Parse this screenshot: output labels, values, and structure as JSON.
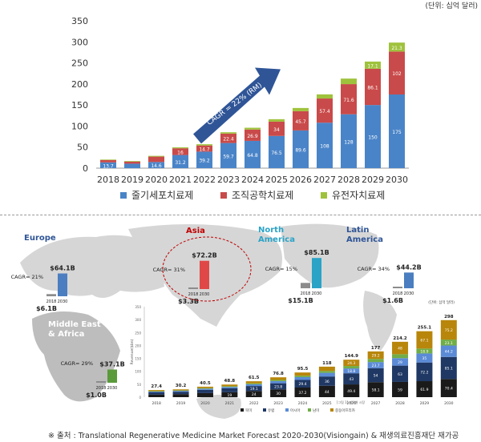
{
  "unit_note": "(단위: 십억 달러)",
  "source": "※ 출처 : Translational Regenerative Medicine Market Forecast 2020-2030(Visiongain) & 재생의료진흥재단 재가공",
  "cagr_label": "CAGR = 22% (RM)",
  "chart_data": [
    {
      "type": "bar",
      "stacked": true,
      "categories": [
        "2018",
        "2019",
        "2020",
        "2021",
        "2022",
        "2023",
        "2024",
        "2025",
        "2026",
        "2027",
        "2028",
        "2029",
        "2030"
      ],
      "series": [
        {
          "name": "줄기세포치료제",
          "color": "#4a84c8",
          "values": [
            13.7,
            10.6,
            14.6,
            31.2,
            39.2,
            59.7,
            64.8,
            76.5,
            89.6,
            108,
            128,
            150,
            175
          ]
        },
        {
          "name": "조직공학치료제",
          "color": "#c94a4a",
          "values": [
            5.6,
            5,
            12.8,
            16,
            14.7,
            22.4,
            26.9,
            34,
            45.7,
            57.4,
            71.6,
            86.1,
            102
          ]
        },
        {
          "name": "유전자치료제",
          "color": "#9fc23c",
          "values": [
            1.2,
            1.4,
            1.8,
            2.2,
            2.9,
            3.2,
            4.3,
            5.8,
            7.6,
            9.9,
            13.2,
            17.1,
            21.3
          ]
        }
      ],
      "ylim": [
        0,
        350
      ],
      "yticks": [
        0,
        50,
        100,
        150,
        200,
        250,
        300,
        350
      ],
      "grid": false,
      "legend": "bottom"
    },
    {
      "type": "bar",
      "stacked": true,
      "categories": [
        "2018",
        "2019",
        "2020",
        "2021",
        "2022",
        "2023",
        "2024",
        "2025",
        "2026",
        "2027",
        "2028",
        "2029",
        "2030"
      ],
      "totals": [
        "27.4",
        "30.2",
        "40.5",
        "48.8",
        "61.5",
        "76.8",
        "95.5",
        "118",
        "144.9",
        "177",
        "214.2",
        "255.1",
        "298"
      ],
      "series": [
        {
          "name": "북미",
          "color": "#1a1a1a",
          "values": [
            10.2,
            11.8,
            15.8,
            19,
            24,
            30,
            37.2,
            44,
            49.4,
            58.1,
            59,
            61.9,
            70.4
          ]
        },
        {
          "name": "유럽",
          "color": "#1f3864",
          "values": [
            8.5,
            9.4,
            12.6,
            15.1,
            19.1,
            23.8,
            29.4,
            36,
            43,
            54,
            63,
            72.2,
            85.1
          ]
        },
        {
          "name": "아시아",
          "color": "#5b8bd6",
          "values": [
            3,
            3.3,
            4.4,
            5.4,
            6.8,
            8.5,
            10.8,
            14.1,
            18.8,
            23.7,
            29,
            35,
            44.2
          ]
        },
        {
          "name": "남미",
          "color": "#70ad47",
          "values": [
            1.5,
            1.7,
            2.3,
            2.7,
            3.4,
            4.3,
            5.6,
            7.2,
            9.4,
            12,
            15.2,
            18.9,
            23.1
          ]
        },
        {
          "name": "중동아프리카",
          "color": "#b8860b",
          "values": [
            4.2,
            4,
            5.4,
            6.6,
            8.2,
            10.2,
            12.5,
            16.7,
            24.3,
            29.2,
            48,
            67.1,
            75.2
          ]
        }
      ],
      "ylabel": "Revenue($bn)",
      "ylim": [
        0,
        350
      ],
      "yticks": [
        0,
        50,
        100,
        150,
        200,
        250,
        300,
        350
      ],
      "unit_note": "(단위: 십억 달러)",
      "x_note": "[그림 1] 지역별 시장"
    }
  ],
  "regions": [
    {
      "name": "Europe",
      "value_2018": "$6.1B",
      "value_2030": "$64.1B",
      "cagr": "CAGR= 21%",
      "year_a": "2018",
      "year_b": "2030",
      "color": "#4a7ec0"
    },
    {
      "name": "Asia",
      "value_2018": "$3.3B",
      "value_2030": "$72.2B",
      "cagr": "CAGR= 31%",
      "year_a": "2018",
      "year_b": "2030",
      "color": "#e04848"
    },
    {
      "name": "North America",
      "value_2018": "$15.1B",
      "value_2030": "$85.1B",
      "cagr": "CAGR= 15%",
      "year_a": "2018",
      "year_b": "2030",
      "color": "#2ba3c7"
    },
    {
      "name": "Latin America",
      "value_2018": "$1.6B",
      "value_2030": "$44.2B",
      "cagr": "CAGR= 34%",
      "year_a": "2018",
      "year_b": "2030",
      "color": "#4a7ec0"
    },
    {
      "name": "Middle East & Africa",
      "value_2018": "$1.0B",
      "value_2030": "$37.1B",
      "cagr": "CAGR= 29%",
      "year_a": "2018",
      "year_b": "2030",
      "color": "#5a9a3a"
    }
  ]
}
